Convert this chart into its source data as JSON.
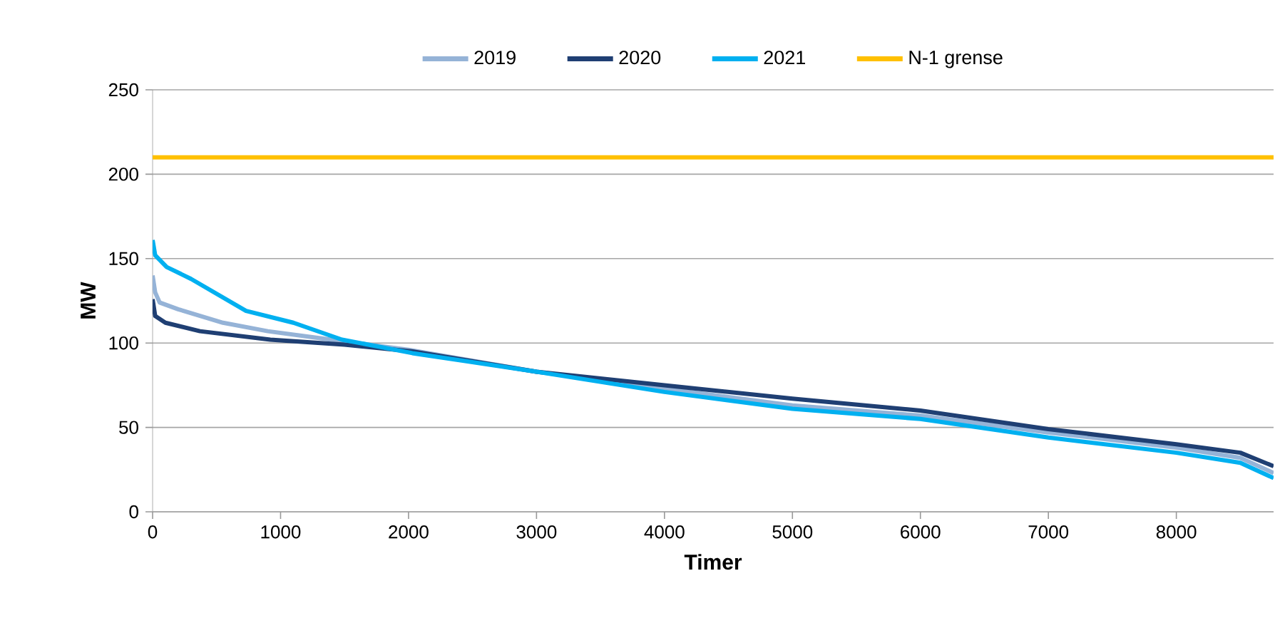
{
  "chart_data": {
    "type": "line",
    "xlabel": "Timer",
    "ylabel": "MW",
    "xlim": [
      0,
      8760
    ],
    "ylim": [
      0,
      250
    ],
    "xticks": [
      0,
      1000,
      2000,
      3000,
      4000,
      5000,
      6000,
      7000,
      8000
    ],
    "yticks": [
      0,
      50,
      100,
      150,
      200,
      250
    ],
    "grid": "y",
    "legend": "top",
    "line_style": "solid",
    "marker": "none",
    "series": [
      {
        "name": "2019",
        "color": "#95b3d7",
        "x": [
          0,
          20,
          55,
          200,
          550,
          900,
          1290,
          2000,
          3000,
          4000,
          5000,
          6000,
          7000,
          8000,
          8500,
          8760
        ],
        "values": [
          140,
          130,
          124,
          120,
          112,
          107,
          103,
          96,
          83,
          73,
          63,
          57,
          47,
          38,
          32,
          23
        ]
      },
      {
        "name": "2020",
        "color": "#1f3f73",
        "x": [
          0,
          20,
          100,
          370,
          920,
          1500,
          2030,
          3000,
          4000,
          5000,
          6000,
          7000,
          8000,
          8500,
          8760
        ],
        "values": [
          126,
          116,
          112,
          107,
          102,
          99,
          95,
          83,
          75,
          67,
          60,
          49,
          40,
          35,
          27
        ]
      },
      {
        "name": "2021",
        "color": "#00b0f0",
        "x": [
          0,
          20,
          110,
          300,
          730,
          1100,
          1480,
          2030,
          3000,
          4000,
          5000,
          6000,
          7000,
          8000,
          8500,
          8760
        ],
        "values": [
          161,
          152,
          145,
          138,
          119,
          112,
          102,
          94,
          83,
          71,
          61,
          55,
          44,
          35,
          29,
          20
        ]
      },
      {
        "name": "N-1 grense",
        "color": "#ffc000",
        "x": [
          0,
          8760
        ],
        "values": [
          210,
          210
        ]
      }
    ]
  }
}
